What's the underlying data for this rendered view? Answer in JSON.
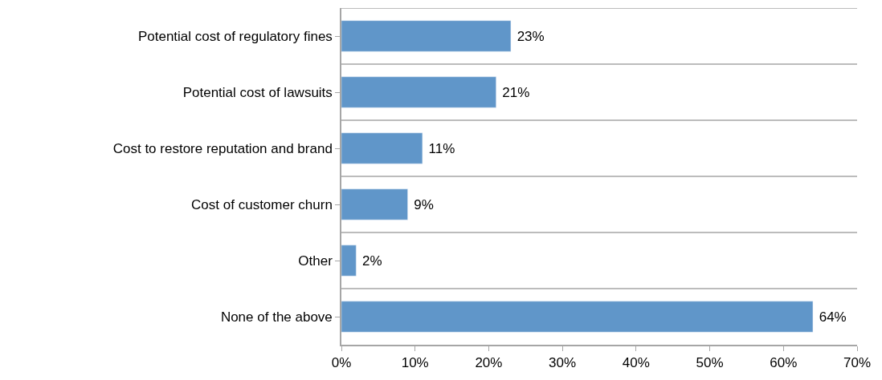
{
  "chart_data": {
    "type": "bar",
    "orientation": "horizontal",
    "categories": [
      "Potential cost of regulatory fines",
      "Potential cost of lawsuits",
      "Cost to restore reputation and brand",
      "Cost of customer churn",
      "Other",
      "None of the above"
    ],
    "values": [
      23,
      21,
      11,
      9,
      2,
      64
    ],
    "value_labels": [
      "23%",
      "21%",
      "11%",
      "9%",
      "2%",
      "64%"
    ],
    "color": "#6096c9",
    "xlim": [
      0,
      70
    ],
    "xticks": [
      {
        "value": 0,
        "label": "0%"
      },
      {
        "value": 10,
        "label": "10%"
      },
      {
        "value": 20,
        "label": "20%"
      },
      {
        "value": 30,
        "label": "30%"
      },
      {
        "value": 40,
        "label": "40%"
      },
      {
        "value": 50,
        "label": "50%"
      },
      {
        "value": 60,
        "label": "60%"
      },
      {
        "value": 70,
        "label": "70%"
      }
    ],
    "grid": "y",
    "legend": false
  }
}
